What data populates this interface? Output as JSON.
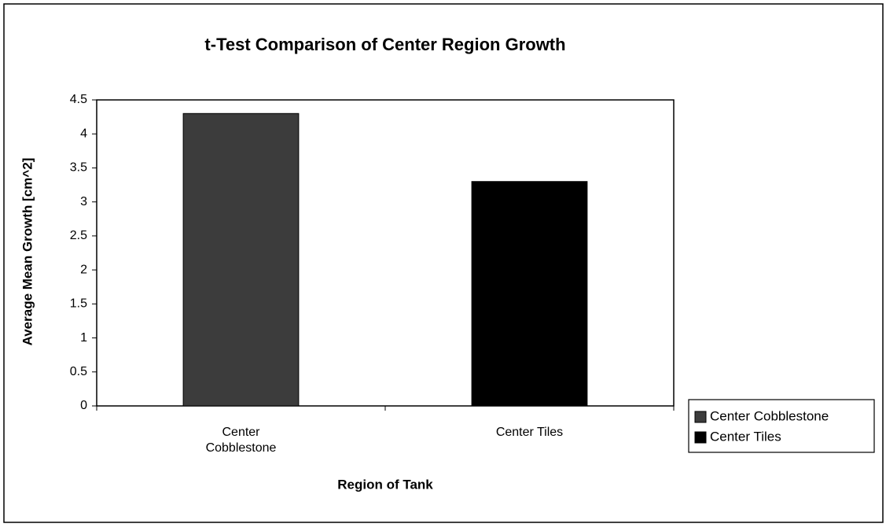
{
  "chart_data": {
    "type": "bar",
    "title": "t-Test Comparison of Center Region Growth",
    "x_label": "Region of Tank",
    "y_label": "Average Mean Growth [cm^2]",
    "categories": [
      "Center Cobblestone",
      "Center Tiles"
    ],
    "values": [
      4.3,
      3.3
    ],
    "colors": [
      "#3c3c3c",
      "#000000"
    ],
    "ylim": [
      0,
      4.5
    ],
    "yticks": [
      0,
      0.5,
      1,
      1.5,
      2,
      2.5,
      3,
      3.5,
      4,
      4.5
    ],
    "grid": false,
    "legend": "right"
  }
}
